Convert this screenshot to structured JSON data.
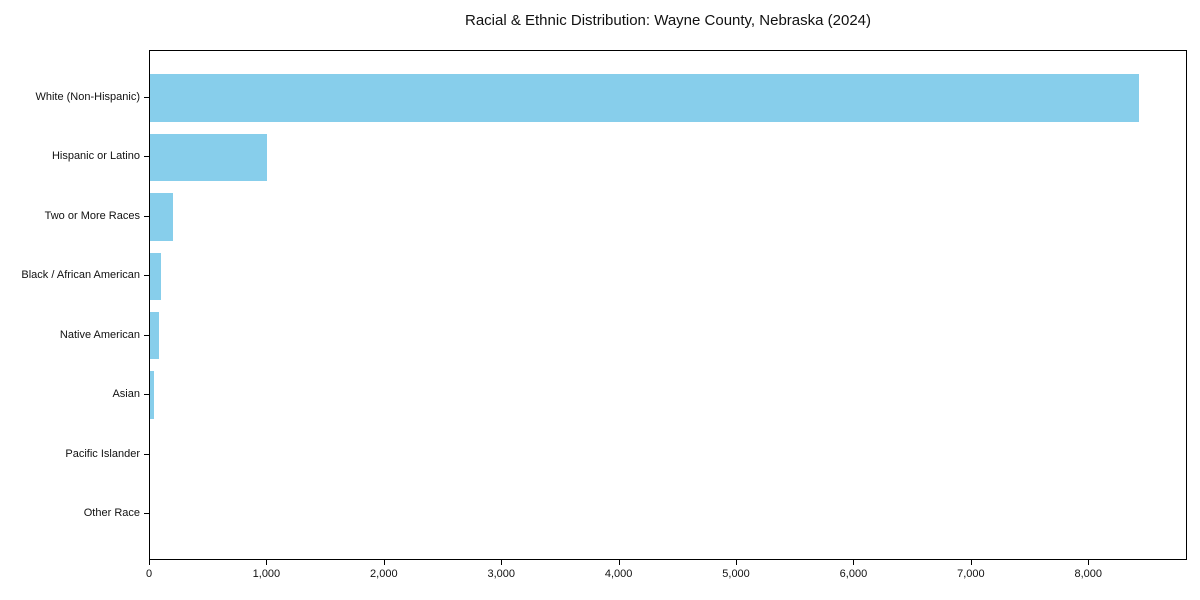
{
  "chart_data": {
    "type": "bar",
    "orientation": "horizontal",
    "title": "Racial & Ethnic Distribution: Wayne County, Nebraska (2024)",
    "categories": [
      "White (Non-Hispanic)",
      "Hispanic or Latino",
      "Two or More Races",
      "Black / African American",
      "Native American",
      "Asian",
      "Pacific Islander",
      "Other Race"
    ],
    "values": [
      8420,
      1000,
      200,
      95,
      80,
      30,
      0,
      0
    ],
    "xlabel": "",
    "ylabel": "",
    "xlim": [
      0,
      8841
    ],
    "x_ticks": [
      0,
      1000,
      2000,
      3000,
      4000,
      5000,
      6000,
      7000,
      8000
    ],
    "x_tick_labels": [
      "0",
      "1,000",
      "2,000",
      "3,000",
      "4,000",
      "5,000",
      "6,000",
      "7,000",
      "8,000"
    ],
    "bar_color": "#87CEEB",
    "bar_height_frac": 0.8,
    "grid": false,
    "legend": "none",
    "frame": true,
    "axis_color": "#000000",
    "text_color": "#111111",
    "background_color": "#ffffff"
  }
}
